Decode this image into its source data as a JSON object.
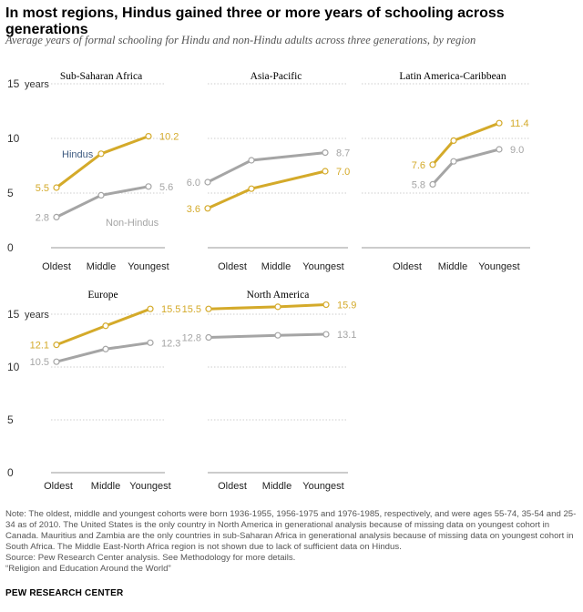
{
  "title": "In most regions, Hindus gained three or more years of schooling across generations",
  "subtitle": "Average years of formal schooling for Hindu and non-Hindu adults across three generations, by region",
  "colors": {
    "hindus": "#d4aa2a",
    "non_hindus": "#a5a5a5",
    "hindus_label": "#3d5a80",
    "grid": "#bfbfbf"
  },
  "chart_data": [
    {
      "type": "line",
      "title": "Sub-Saharan Africa",
      "categories": [
        "Oldest",
        "Middle",
        "Youngest"
      ],
      "ylim": [
        0,
        15
      ],
      "yticks": [
        "0",
        "5",
        "10",
        "15"
      ],
      "yunit": "years",
      "series": [
        {
          "name": "Hindus",
          "values": [
            5.5,
            8.6,
            10.2
          ],
          "start_label": "5.5",
          "end_label": "10.2"
        },
        {
          "name": "Non-Hindus",
          "values": [
            2.8,
            4.8,
            5.6
          ],
          "start_label": "2.8",
          "end_label": "5.6"
        }
      ]
    },
    {
      "type": "line",
      "title": "Asia-Pacific",
      "categories": [
        "Oldest",
        "Middle",
        "Youngest"
      ],
      "ylim": [
        0,
        15
      ],
      "series": [
        {
          "name": "Hindus",
          "values": [
            3.6,
            5.4,
            7.0
          ],
          "start_label": "3.6",
          "end_label": "7.0"
        },
        {
          "name": "Non-Hindus",
          "values": [
            6.0,
            8.0,
            8.7
          ],
          "start_label": "6.0",
          "end_label": "8.7"
        }
      ]
    },
    {
      "type": "line",
      "title": "Latin America-Caribbean",
      "categories": [
        "Oldest",
        "Middle",
        "Youngest"
      ],
      "ylim": [
        0,
        15
      ],
      "series": [
        {
          "name": "Hindus",
          "values": [
            7.6,
            9.8,
            11.4
          ],
          "start_label": "7.6",
          "end_label": "11.4"
        },
        {
          "name": "Non-Hindus",
          "values": [
            5.8,
            7.9,
            9.0
          ],
          "start_label": "5.8",
          "end_label": "9.0"
        }
      ]
    },
    {
      "type": "line",
      "title": "Europe",
      "categories": [
        "Oldest",
        "Middle",
        "Youngest"
      ],
      "ylim": [
        0,
        15
      ],
      "yticks": [
        "0",
        "5",
        "10",
        "15"
      ],
      "yunit": "years",
      "series": [
        {
          "name": "Hindus",
          "values": [
            12.1,
            13.9,
            15.5
          ],
          "start_label": "12.1",
          "end_label": "15.5"
        },
        {
          "name": "Non-Hindus",
          "values": [
            10.5,
            11.7,
            12.3
          ],
          "start_label": "10.5",
          "end_label": "12.3"
        }
      ]
    },
    {
      "type": "line",
      "title": "North America",
      "categories": [
        "Oldest",
        "Middle",
        "Youngest"
      ],
      "ylim": [
        0,
        15
      ],
      "series": [
        {
          "name": "Hindus",
          "values": [
            15.5,
            15.7,
            15.9
          ],
          "start_label": "15.5",
          "end_label": "15.9"
        },
        {
          "name": "Non-Hindus",
          "values": [
            12.8,
            13.0,
            13.1
          ],
          "start_label": "12.8",
          "end_label": "13.1"
        }
      ]
    }
  ],
  "notes": {
    "note": "Note: The oldest, middle and youngest cohorts were born 1936-1955, 1956-1975 and 1976-1985, respectively, and were ages 55-74, 35-54 and 25-34 as of 2010. The United States is the only country in North America in generational analysis because of missing data on youngest cohort in Canada. Mauritius and Zambia are the only countries in sub-Saharan Africa in generational analysis because of missing data on youngest cohort in South Africa. The Middle East-North Africa region is not shown due to lack of sufficient data on Hindus.",
    "source": "Source: Pew Research Center analysis. See Methodology for more details.",
    "report": "“Religion and Education Around the World”"
  },
  "org": "PEW RESEARCH CENTER"
}
